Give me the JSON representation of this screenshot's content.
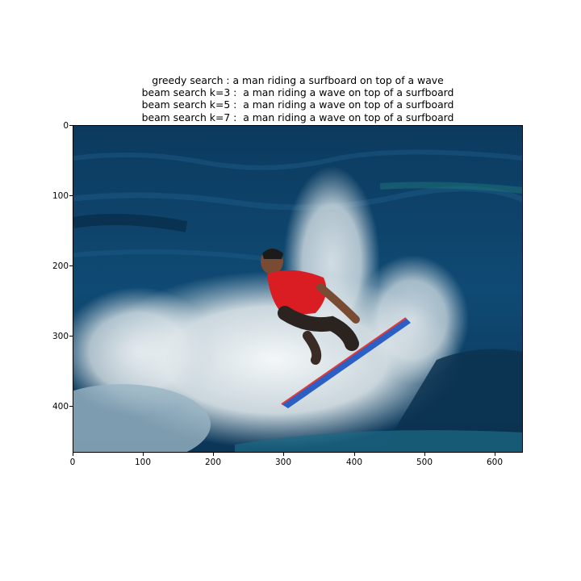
{
  "captions": [
    "greedy search : a man riding a surfboard on top of a wave",
    "beam search k=3 :  a man riding a wave on top of a surfboard",
    "beam search k=5 :  a man riding a wave on top of a surfboard",
    "beam search k=7 :  a man riding a wave on top of a surfboard"
  ],
  "image": {
    "subject": "surfer in red shirt riding a blue surfboard through white wave spray",
    "colors": {
      "ocean": "#0e3f63",
      "deep": "#08304f",
      "spray": "#e9eef0",
      "shirt": "#d91d22",
      "board": "#2b5fc4"
    }
  },
  "axes": {
    "x_ticks": [
      "0",
      "100",
      "200",
      "300",
      "400",
      "500",
      "600"
    ],
    "y_ticks": [
      "0",
      "100",
      "200",
      "300",
      "400"
    ],
    "x_range": [
      0,
      640
    ],
    "y_range": [
      0,
      466
    ]
  }
}
